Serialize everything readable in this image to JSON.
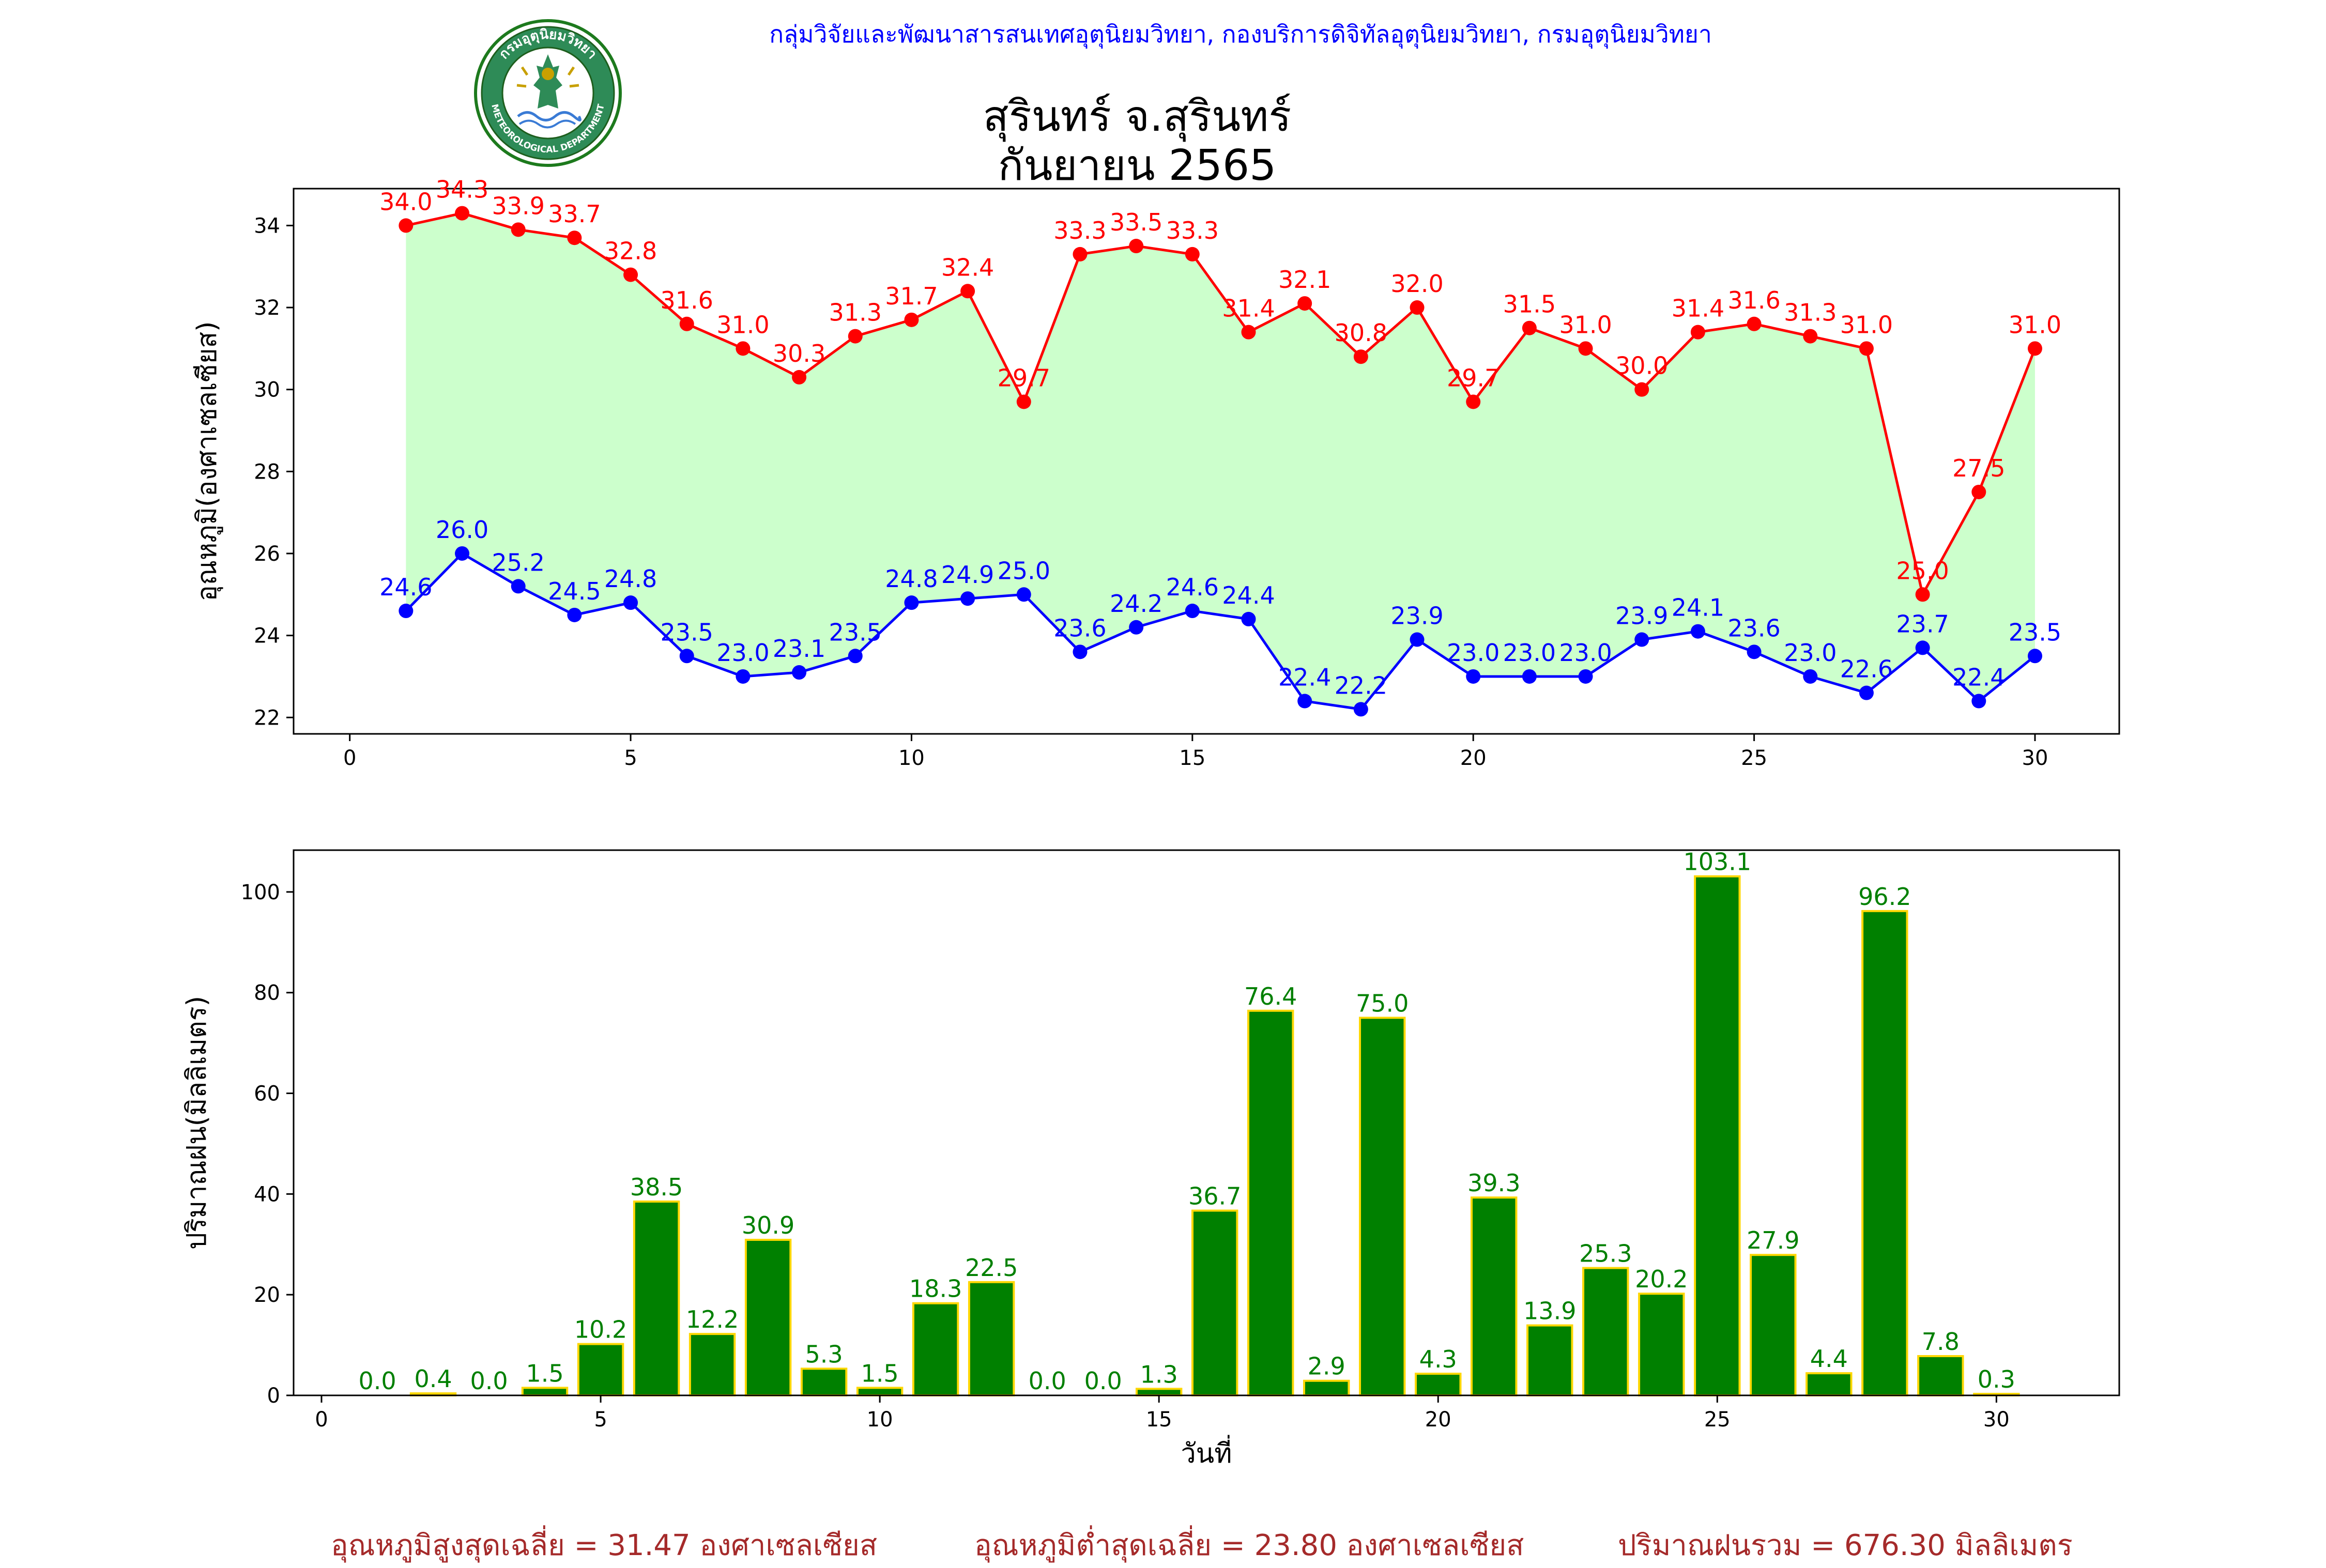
{
  "header": {
    "agency_line": "กลุ่มวิจัยและพัฒนาสารสนเทศอุตุนิยมวิทยา, กองบริการดิจิทัลอุตุนิยมวิทยา, กรมอุตุนิยมวิทยา",
    "title_line1": "สุรินทร์ จ.สุรินทร์",
    "title_line2": "กันยายน 2565"
  },
  "logo": {
    "top_text": "กรมอุตุนิยมวิทยา",
    "bottom_text": "METEOROLOGICAL DEPARTMENT"
  },
  "colors": {
    "max_temp": "#ff0000",
    "min_temp": "#0000ff",
    "fill": "#ccffcc",
    "rain_bar": "#008000",
    "rain_edge": "#ffd700",
    "rain_label": "#008000",
    "header": "#0000ff",
    "footer": "#a52a2a"
  },
  "chart_data": [
    {
      "type": "line",
      "ylabel": "อุณหภูมิ(องศาเซลเซียส)",
      "xlabel": "",
      "xlim": [
        -1,
        31.5
      ],
      "ylim": [
        21.6,
        34.9
      ],
      "xticks": [
        0,
        5,
        10,
        15,
        20,
        25,
        30
      ],
      "yticks": [
        22,
        24,
        26,
        28,
        30,
        32,
        34
      ],
      "x": [
        1,
        2,
        3,
        4,
        5,
        6,
        7,
        8,
        9,
        10,
        11,
        12,
        13,
        14,
        15,
        16,
        17,
        18,
        19,
        20,
        21,
        22,
        23,
        24,
        25,
        26,
        27,
        28,
        29,
        30
      ],
      "series": [
        {
          "key": "max",
          "values": [
            34.0,
            34.3,
            33.9,
            33.7,
            32.8,
            31.6,
            31.0,
            30.3,
            31.3,
            31.7,
            32.4,
            29.7,
            33.3,
            33.5,
            33.3,
            31.4,
            32.1,
            30.8,
            32.0,
            29.7,
            31.5,
            31.0,
            30.0,
            31.4,
            31.6,
            31.3,
            31.0,
            25.0,
            27.5,
            31.0
          ]
        },
        {
          "key": "min",
          "values": [
            24.6,
            26.0,
            25.2,
            24.5,
            24.8,
            23.5,
            23.0,
            23.1,
            23.5,
            24.8,
            24.9,
            25.0,
            23.6,
            24.2,
            24.6,
            24.4,
            22.4,
            22.2,
            23.9,
            23.0,
            23.0,
            23.0,
            23.9,
            24.1,
            23.6,
            23.0,
            22.6,
            23.7,
            22.4,
            23.5
          ]
        }
      ],
      "fill_between": true
    },
    {
      "type": "bar",
      "ylabel": "ปริมาณฝน(มิลลิเมตร)",
      "xlabel": "วันที่",
      "xlim": [
        -0.5,
        32.2
      ],
      "ylim": [
        0,
        108.3
      ],
      "xticks": [
        0,
        5,
        10,
        15,
        20,
        25,
        30
      ],
      "yticks": [
        0,
        20,
        40,
        60,
        80,
        100
      ],
      "x": [
        1,
        2,
        3,
        4,
        5,
        6,
        7,
        8,
        9,
        10,
        11,
        12,
        13,
        14,
        15,
        16,
        17,
        18,
        19,
        20,
        21,
        22,
        23,
        24,
        25,
        26,
        27,
        28,
        29,
        30
      ],
      "values": [
        0.0,
        0.4,
        0.0,
        1.5,
        10.2,
        38.5,
        12.2,
        30.9,
        5.3,
        1.5,
        18.3,
        22.5,
        0.0,
        0.0,
        1.3,
        36.7,
        76.4,
        2.9,
        75.0,
        4.3,
        39.3,
        13.9,
        25.3,
        20.2,
        103.1,
        27.9,
        4.4,
        96.2,
        7.8,
        0.3
      ]
    }
  ],
  "footer": {
    "avg_max": "อุณหภูมิสูงสุดเฉลี่ย = 31.47 องศาเซลเซียส",
    "avg_min": "อุณหภูมิต่ำสุดเฉลี่ย = 23.80 องศาเซลเซียส",
    "total_rain": "ปริมาณฝนรวม = 676.30 มิลลิเมตร"
  }
}
